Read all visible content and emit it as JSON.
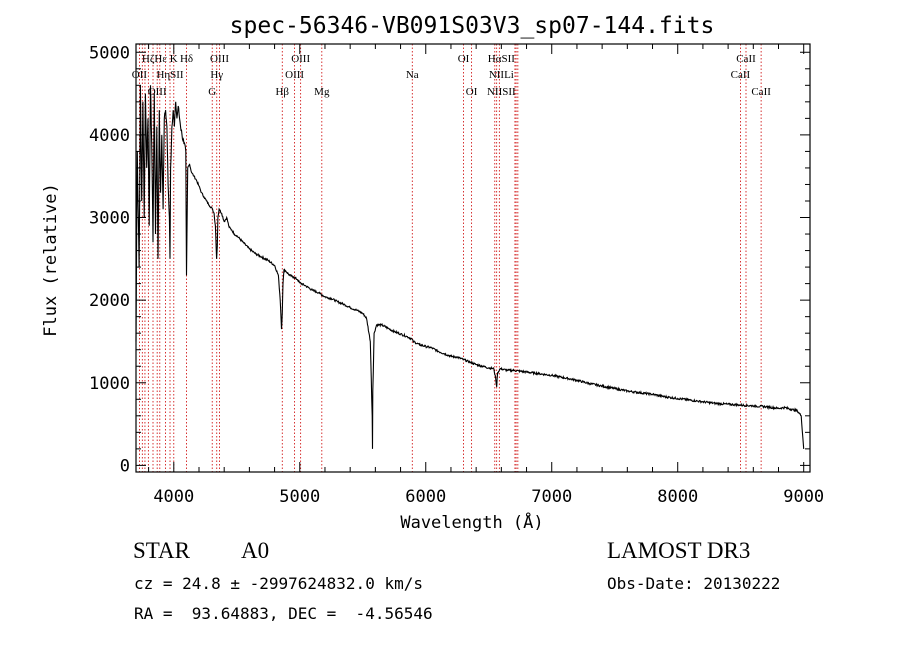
{
  "chart_data": {
    "type": "line",
    "title": "spec-56346-VB091S03V3_sp07-144.fits",
    "xlabel": "Wavelength (Å)",
    "ylabel": "Flux (relative)",
    "xlim": [
      3700,
      9050
    ],
    "ylim": [
      -80,
      5100
    ],
    "xticks": [
      4000,
      5000,
      6000,
      7000,
      8000,
      9000
    ],
    "yticks": [
      0,
      1000,
      2000,
      3000,
      4000,
      5000
    ],
    "xtick_labels": [
      "4000",
      "5000",
      "6000",
      "7000",
      "8000",
      "9000"
    ],
    "ytick_labels": [
      "0",
      "1000",
      "2000",
      "3000",
      "4000",
      "5000"
    ],
    "series": [
      {
        "name": "flux",
        "x": [
          3700,
          3710,
          3725,
          3735,
          3745,
          3755,
          3765,
          3775,
          3785,
          3795,
          3805,
          3815,
          3825,
          3835,
          3845,
          3855,
          3865,
          3875,
          3885,
          3895,
          3905,
          3915,
          3925,
          3935,
          3945,
          3955,
          3965,
          3970,
          3975,
          3985,
          3995,
          4005,
          4015,
          4025,
          4035,
          4050,
          4065,
          4080,
          4095,
          4101,
          4110,
          4125,
          4140,
          4160,
          4180,
          4200,
          4220,
          4240,
          4260,
          4280,
          4300,
          4320,
          4330,
          4340,
          4345,
          4350,
          4360,
          4380,
          4400,
          4420,
          4440,
          4460,
          4480,
          4500,
          4550,
          4600,
          4650,
          4700,
          4750,
          4800,
          4830,
          4845,
          4855,
          4861,
          4867,
          4875,
          4890,
          4920,
          4950,
          4980,
          5000,
          5050,
          5100,
          5150,
          5200,
          5250,
          5300,
          5350,
          5400,
          5450,
          5500,
          5530,
          5560,
          5575,
          5577,
          5580,
          5590,
          5610,
          5650,
          5700,
          5750,
          5800,
          5850,
          5890,
          5900,
          5950,
          6000,
          6050,
          6100,
          6150,
          6200,
          6250,
          6300,
          6350,
          6400,
          6450,
          6500,
          6540,
          6555,
          6563,
          6570,
          6590,
          6650,
          6700,
          6750,
          6800,
          6900,
          7000,
          7100,
          7200,
          7300,
          7400,
          7500,
          7600,
          7700,
          7800,
          7900,
          8000,
          8100,
          8200,
          8300,
          8400,
          8500,
          8600,
          8700,
          8800,
          8850,
          8900,
          8950,
          8980,
          9000
        ],
        "y": [
          1500,
          3800,
          2400,
          4600,
          3200,
          4400,
          3000,
          4500,
          3600,
          4200,
          2900,
          4600,
          3900,
          2700,
          4500,
          2800,
          4100,
          2500,
          4300,
          3300,
          4000,
          3100,
          4200,
          4300,
          4100,
          3400,
          3000,
          2500,
          3600,
          4100,
          4300,
          4100,
          4400,
          4200,
          4350,
          4150,
          4000,
          3900,
          3800,
          2300,
          3600,
          3650,
          3550,
          3500,
          3450,
          3380,
          3300,
          3250,
          3200,
          3150,
          3120,
          3050,
          2900,
          2500,
          2650,
          3000,
          3100,
          3050,
          2950,
          3000,
          2880,
          2850,
          2800,
          2780,
          2700,
          2620,
          2560,
          2520,
          2480,
          2420,
          2300,
          2000,
          1650,
          1850,
          2200,
          2370,
          2350,
          2300,
          2280,
          2250,
          2210,
          2170,
          2120,
          2090,
          2040,
          2020,
          1980,
          1950,
          1910,
          1880,
          1840,
          1780,
          1500,
          600,
          200,
          900,
          1600,
          1700,
          1700,
          1660,
          1620,
          1590,
          1560,
          1530,
          1500,
          1460,
          1440,
          1420,
          1380,
          1350,
          1320,
          1310,
          1280,
          1250,
          1220,
          1200,
          1180,
          1170,
          1050,
          950,
          1120,
          1170,
          1150,
          1150,
          1140,
          1130,
          1110,
          1090,
          1060,
          1030,
          990,
          960,
          930,
          900,
          880,
          860,
          830,
          810,
          790,
          770,
          750,
          740,
          730,
          720,
          710,
          690,
          700,
          680,
          660,
          600,
          200
        ]
      }
    ],
    "line_labels": [
      {
        "name": "HζHε K",
        "x": 3889,
        "row": 1
      },
      {
        "name": "OII",
        "x": 3727,
        "row": 2
      },
      {
        "name": "HηSII",
        "x": 3970,
        "row": 2
      },
      {
        "name": "OIII",
        "x": 3868,
        "row": 3
      },
      {
        "name": "Hδ",
        "x": 4101,
        "row": 1
      },
      {
        "name": "OIII",
        "x": 4363,
        "row": 1
      },
      {
        "name": "Hγ",
        "x": 4341,
        "row": 2
      },
      {
        "name": "G",
        "x": 4305,
        "row": 3
      },
      {
        "name": "Hβ",
        "x": 4861,
        "row": 3
      },
      {
        "name": "OIII",
        "x": 5007,
        "row": 1
      },
      {
        "name": "OIII",
        "x": 4959,
        "row": 2
      },
      {
        "name": "Mg",
        "x": 5175,
        "row": 3
      },
      {
        "name": "Na",
        "x": 5893,
        "row": 2
      },
      {
        "name": "OI",
        "x": 6300,
        "row": 1
      },
      {
        "name": "OI",
        "x": 6364,
        "row": 3
      },
      {
        "name": "HαSII",
        "x": 6600,
        "row": 1
      },
      {
        "name": "NIILi",
        "x": 6600,
        "row": 2
      },
      {
        "name": "NIISII",
        "x": 6600,
        "row": 3
      },
      {
        "name": "CaII",
        "x": 8542,
        "row": 1
      },
      {
        "name": "CaII",
        "x": 8498,
        "row": 2
      },
      {
        "name": "CaII",
        "x": 8662,
        "row": 3
      }
    ],
    "line_positions": [
      3727,
      3750,
      3771,
      3798,
      3835,
      3868,
      3889,
      3934,
      3970,
      4000,
      4101,
      4305,
      4341,
      4363,
      4861,
      4959,
      5007,
      5175,
      5893,
      6300,
      6364,
      6548,
      6563,
      6584,
      6708,
      6717,
      6731,
      8498,
      8542,
      8662
    ],
    "line_color": "#cc0000"
  },
  "info": {
    "object_class": "STAR",
    "subclass": "A0",
    "survey": "LAMOST DR3",
    "redshift_line": "cz = 24.8 ± -2997624832.0 km/s",
    "obs_date": "Obs-Date: 20130222",
    "coords": "RA =  93.64883, DEC =  -4.56546"
  }
}
